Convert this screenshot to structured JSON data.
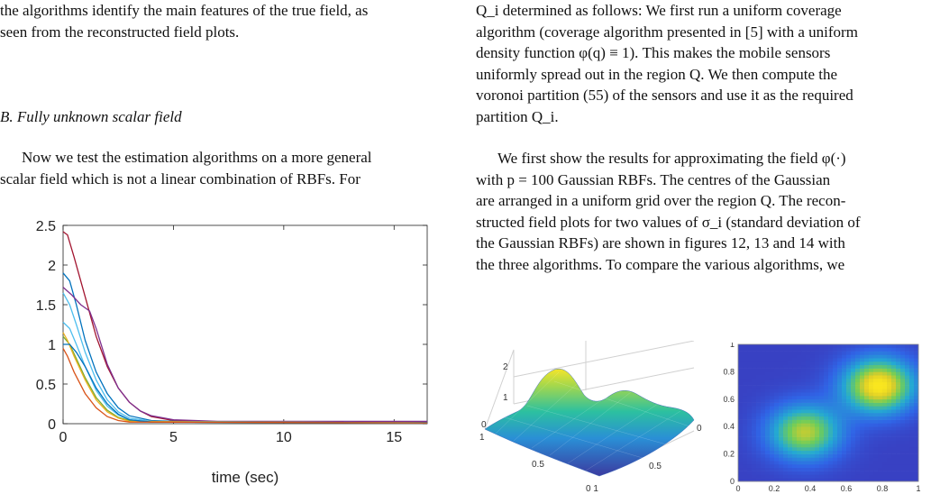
{
  "left_col": {
    "para1_line1": "the algorithms identify the main features of the true field, as",
    "para1_line2": "seen from the reconstructed field plots.",
    "section_heading": "B.  Fully unknown scalar field",
    "para2_line1": "Now we test the estimation algorithms on a more general",
    "para2_line2": "scalar field which is not a linear combination of RBFs. For"
  },
  "right_col": {
    "para1_line1": "Q_i determined as follows: We first run a uniform coverage",
    "para1_line2": "algorithm (coverage algorithm presented in [5] with a uniform",
    "para1_line3": "density function φ(q) ≡ 1). This makes the mobile sensors",
    "para1_line4": "uniformly spread out in the region Q. We then compute the",
    "para1_line5": "voronoi partition (55) of the sensors and use it as the required",
    "para1_line6": "partition Q_i.",
    "para2_line1": "We first show the results for approximating the field φ(·)",
    "para2_line2": "with p = 100 Gaussian RBFs. The centres of the Gaussian",
    "para2_line3": "are arranged in a uniform grid over the region Q. The recon-",
    "para2_line4": "structed field plots for two values of σ_i (standard deviation of",
    "para2_line5": "the Gaussian RBFs) are shown in figures 12, 13 and 14 with",
    "para2_line6": "the three algorithms. To compare the various algorithms, we"
  },
  "colors": {
    "series": [
      "#a2142f",
      "#0072bd",
      "#7e2f8e",
      "#4dbeee",
      "#77ac30",
      "#edb120",
      "#d95319",
      "#0072bd"
    ]
  },
  "chart_data": [
    {
      "type": "line",
      "title": "",
      "xlabel": "time (sec)",
      "ylabel": "",
      "xlim": [
        0,
        16.5
      ],
      "ylim": [
        0,
        2.5
      ],
      "xticks": [
        "0",
        "5",
        "10",
        "15"
      ],
      "xtick_values": [
        0,
        5,
        10,
        15
      ],
      "yticks": [
        "0",
        "0.5",
        "1",
        "1.5",
        "2",
        "2.5"
      ],
      "ytick_values": [
        0,
        0.5,
        1,
        1.5,
        2,
        2.5
      ],
      "grid": false,
      "series": [
        {
          "color": "#a2142f",
          "points": [
            [
              0,
              2.42
            ],
            [
              0.2,
              2.38
            ],
            [
              0.5,
              2.1
            ],
            [
              1,
              1.6
            ],
            [
              1.5,
              1.1
            ],
            [
              2,
              0.72
            ],
            [
              2.5,
              0.45
            ],
            [
              3,
              0.27
            ],
            [
              3.5,
              0.16
            ],
            [
              4,
              0.09
            ],
            [
              5,
              0.04
            ],
            [
              7,
              0.02
            ],
            [
              16.5,
              0.02
            ]
          ]
        },
        {
          "color": "#0072bd",
          "points": [
            [
              0,
              1.9
            ],
            [
              0.3,
              1.8
            ],
            [
              0.6,
              1.5
            ],
            [
              1,
              1.05
            ],
            [
              1.5,
              0.65
            ],
            [
              2,
              0.38
            ],
            [
              2.5,
              0.2
            ],
            [
              3,
              0.1
            ],
            [
              4,
              0.04
            ],
            [
              6,
              0.02
            ],
            [
              16.5,
              0.02
            ]
          ]
        },
        {
          "color": "#7e2f8e",
          "points": [
            [
              0,
              1.72
            ],
            [
              0.4,
              1.62
            ],
            [
              0.8,
              1.5
            ],
            [
              1.2,
              1.42
            ],
            [
              1.5,
              1.2
            ],
            [
              2,
              0.75
            ],
            [
              2.5,
              0.45
            ],
            [
              3,
              0.27
            ],
            [
              3.5,
              0.16
            ],
            [
              4,
              0.1
            ],
            [
              5,
              0.05
            ],
            [
              7,
              0.03
            ],
            [
              16.5,
              0.03
            ]
          ]
        },
        {
          "color": "#4dbeee",
          "points": [
            [
              0,
              1.65
            ],
            [
              0.3,
              1.5
            ],
            [
              0.6,
              1.25
            ],
            [
              1,
              0.9
            ],
            [
              1.5,
              0.55
            ],
            [
              2,
              0.3
            ],
            [
              2.5,
              0.15
            ],
            [
              3,
              0.07
            ],
            [
              4,
              0.03
            ],
            [
              16.5,
              0.01
            ]
          ]
        },
        {
          "color": "#4dbeee",
          "points": [
            [
              0,
              1.28
            ],
            [
              0.3,
              1.2
            ],
            [
              0.6,
              1.0
            ],
            [
              1,
              0.72
            ],
            [
              1.5,
              0.42
            ],
            [
              2,
              0.22
            ],
            [
              2.5,
              0.11
            ],
            [
              3,
              0.05
            ],
            [
              4,
              0.02
            ],
            [
              16.5,
              0.01
            ]
          ]
        },
        {
          "color": "#77ac30",
          "points": [
            [
              0,
              1.1
            ],
            [
              0.3,
              1.0
            ],
            [
              0.6,
              0.82
            ],
            [
              1,
              0.58
            ],
            [
              1.5,
              0.33
            ],
            [
              2,
              0.17
            ],
            [
              2.5,
              0.08
            ],
            [
              3,
              0.04
            ],
            [
              4,
              0.02
            ],
            [
              16.5,
              0.01
            ]
          ]
        },
        {
          "color": "#edb120",
          "points": [
            [
              0,
              1.15
            ],
            [
              0.2,
              1.05
            ],
            [
              0.5,
              0.85
            ],
            [
              1,
              0.55
            ],
            [
              1.5,
              0.3
            ],
            [
              2,
              0.15
            ],
            [
              2.5,
              0.07
            ],
            [
              3,
              0.03
            ],
            [
              16.5,
              0.01
            ]
          ]
        },
        {
          "color": "#0072bd",
          "points": [
            [
              0,
              1.0
            ],
            [
              0.3,
              1.0
            ],
            [
              0.6,
              0.9
            ],
            [
              1,
              0.72
            ],
            [
              1.5,
              0.45
            ],
            [
              2,
              0.25
            ],
            [
              2.5,
              0.12
            ],
            [
              3,
              0.05
            ],
            [
              4,
              0.02
            ],
            [
              16.5,
              0.01
            ]
          ]
        },
        {
          "color": "#d95319",
          "points": [
            [
              0,
              0.95
            ],
            [
              0.2,
              0.85
            ],
            [
              0.5,
              0.65
            ],
            [
              1,
              0.38
            ],
            [
              1.5,
              0.2
            ],
            [
              2,
              0.09
            ],
            [
              2.5,
              0.04
            ],
            [
              3,
              0.02
            ],
            [
              16.5,
              0.01
            ]
          ]
        }
      ]
    },
    {
      "type": "surface",
      "title": "",
      "zticks": [
        "0",
        "1",
        "2"
      ],
      "xticks": [
        "0.5",
        "0"
      ],
      "yticks": [
        "1",
        "0.5",
        "0 1"
      ],
      "corner_tick": "0"
    },
    {
      "type": "heatmap",
      "title": "",
      "xlim": [
        0,
        1
      ],
      "ylim": [
        0,
        1
      ],
      "xticks": [
        "0",
        "0.2",
        "0.4",
        "0.6",
        "0.8",
        "1"
      ],
      "yticks": [
        "0",
        "0.2",
        "0.4",
        "0.6",
        "0.8",
        "1"
      ],
      "peaks": [
        {
          "x": 0.78,
          "y": 0.7,
          "amp": 1.0
        },
        {
          "x": 0.37,
          "y": 0.36,
          "amp": 0.8
        }
      ]
    }
  ]
}
